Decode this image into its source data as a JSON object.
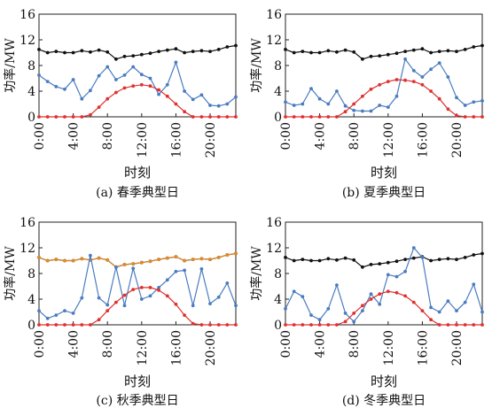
{
  "chart_data": [
    {
      "type": "line",
      "caption": "(a) 春季典型日",
      "xlabel": "时刻",
      "ylabel": "功率/MW",
      "xlim": [
        0,
        23
      ],
      "ylim": [
        0,
        16
      ],
      "xticks": [
        0,
        4,
        8,
        12,
        16,
        20
      ],
      "xtick_labels": [
        "0:00",
        "4:00",
        "8:00",
        "12:00",
        "16:00",
        "20:00"
      ],
      "yticks": [
        0,
        4,
        8,
        12,
        16
      ],
      "ytick_labels": [
        "0",
        "4",
        "8",
        "12",
        "16"
      ],
      "x": [
        0,
        1,
        2,
        3,
        4,
        5,
        6,
        7,
        8,
        9,
        10,
        11,
        12,
        13,
        14,
        15,
        16,
        17,
        18,
        19,
        20,
        21,
        22,
        23
      ],
      "series": [
        {
          "color": "#111111",
          "marker": "circle",
          "values": [
            10.5,
            10.0,
            10.2,
            10.0,
            10.0,
            10.3,
            10.1,
            10.4,
            10.1,
            9.0,
            9.4,
            9.5,
            9.7,
            9.9,
            10.2,
            10.4,
            10.6,
            10.0,
            10.2,
            10.3,
            10.2,
            10.5,
            10.9,
            11.1
          ]
        },
        {
          "color": "#4a7cc0",
          "marker": "circle",
          "values": [
            6.5,
            5.5,
            4.7,
            4.3,
            5.8,
            2.8,
            4.1,
            6.4,
            7.8,
            5.8,
            6.5,
            7.8,
            6.6,
            6.0,
            3.5,
            5.0,
            8.5,
            4.0,
            2.7,
            3.4,
            1.8,
            1.7,
            2.0,
            3.1
          ]
        },
        {
          "color": "#e03030",
          "marker": "circle",
          "values": [
            0,
            0,
            0,
            0,
            0,
            0,
            0.3,
            1.5,
            2.8,
            3.8,
            4.5,
            4.8,
            5.0,
            4.8,
            4.2,
            3.2,
            2.0,
            0.8,
            0,
            0,
            0,
            0,
            0,
            0
          ]
        }
      ]
    },
    {
      "type": "line",
      "caption": "(b) 夏季典型日",
      "xlabel": "时刻",
      "ylabel": "功率/MW",
      "xlim": [
        0,
        23
      ],
      "ylim": [
        0,
        16
      ],
      "xticks": [
        0,
        4,
        8,
        12,
        16,
        20
      ],
      "xtick_labels": [
        "0:00",
        "4:00",
        "8:00",
        "12:00",
        "16:00",
        "20:00"
      ],
      "yticks": [
        0,
        4,
        8,
        12,
        16
      ],
      "ytick_labels": [
        "0",
        "4",
        "8",
        "12",
        "16"
      ],
      "x": [
        0,
        1,
        2,
        3,
        4,
        5,
        6,
        7,
        8,
        9,
        10,
        11,
        12,
        13,
        14,
        15,
        16,
        17,
        18,
        19,
        20,
        21,
        22,
        23
      ],
      "series": [
        {
          "color": "#111111",
          "marker": "circle",
          "values": [
            10.5,
            10.0,
            10.2,
            10.0,
            10.0,
            10.3,
            10.1,
            10.4,
            10.1,
            9.0,
            9.4,
            9.5,
            9.7,
            9.9,
            10.2,
            10.4,
            10.6,
            10.0,
            10.2,
            10.3,
            10.2,
            10.5,
            10.9,
            11.1
          ]
        },
        {
          "color": "#4a7cc0",
          "marker": "circle",
          "values": [
            2.3,
            1.8,
            2.0,
            4.4,
            2.8,
            2.0,
            4.0,
            1.7,
            1.0,
            0.9,
            0.9,
            1.8,
            1.5,
            3.2,
            9.0,
            7.2,
            6.2,
            7.4,
            8.4,
            6.2,
            3.0,
            1.8,
            2.3,
            2.5
          ]
        },
        {
          "color": "#e03030",
          "marker": "circle",
          "values": [
            0,
            0,
            0,
            0,
            0,
            0,
            0,
            0.8,
            2.0,
            3.2,
            4.3,
            5.0,
            5.5,
            5.8,
            5.7,
            5.5,
            5.0,
            4.0,
            2.8,
            1.2,
            0.2,
            0,
            0,
            0
          ]
        }
      ]
    },
    {
      "type": "line",
      "caption": "(c) 秋季典型日",
      "xlabel": "时刻",
      "ylabel": "功率/MW",
      "xlim": [
        0,
        23
      ],
      "ylim": [
        0,
        16
      ],
      "xticks": [
        0,
        4,
        8,
        12,
        16,
        20
      ],
      "xtick_labels": [
        "0:00",
        "4:00",
        "8:00",
        "12:00",
        "16:00",
        "20:00"
      ],
      "yticks": [
        0,
        4,
        8,
        12,
        16
      ],
      "ytick_labels": [
        "0",
        "4",
        "8",
        "12",
        "16"
      ],
      "x": [
        0,
        1,
        2,
        3,
        4,
        5,
        6,
        7,
        8,
        9,
        10,
        11,
        12,
        13,
        14,
        15,
        16,
        17,
        18,
        19,
        20,
        21,
        22,
        23
      ],
      "series": [
        {
          "color": "#111111",
          "marker": "circle",
          "values": [
            10.5,
            10.0,
            10.2,
            10.0,
            10.0,
            10.3,
            10.1,
            10.4,
            10.1,
            9.0,
            9.4,
            9.5,
            9.7,
            9.9,
            10.2,
            10.4,
            10.6,
            10.0,
            10.2,
            10.3,
            10.2,
            10.5,
            10.9,
            11.1
          ]
        },
        {
          "color": "#e08a2a",
          "marker": "circle",
          "values": [
            10.5,
            10.0,
            10.2,
            10.0,
            10.0,
            10.3,
            10.1,
            10.4,
            10.1,
            9.0,
            9.4,
            9.5,
            9.7,
            9.9,
            10.2,
            10.4,
            10.6,
            10.0,
            10.2,
            10.3,
            10.2,
            10.5,
            10.9,
            11.1
          ]
        },
        {
          "color": "#4a7cc0",
          "marker": "circle",
          "values": [
            2.2,
            1.0,
            1.5,
            2.2,
            1.8,
            4.2,
            10.8,
            4.2,
            3.1,
            9.0,
            3.0,
            8.8,
            4.0,
            4.5,
            5.8,
            7.0,
            8.3,
            8.5,
            3.0,
            8.7,
            3.3,
            4.3,
            6.5,
            3.0
          ]
        },
        {
          "color": "#e03030",
          "marker": "circle",
          "values": [
            0,
            0,
            0,
            0,
            0,
            0,
            0,
            0.8,
            2.2,
            3.5,
            4.6,
            5.5,
            5.8,
            5.8,
            5.4,
            4.5,
            3.2,
            1.5,
            0.2,
            0,
            0,
            0,
            0,
            0
          ]
        }
      ]
    },
    {
      "type": "line",
      "caption": "(d) 冬季典型日",
      "xlabel": "时刻",
      "ylabel": "功率/MW",
      "xlim": [
        0,
        23
      ],
      "ylim": [
        0,
        16
      ],
      "xticks": [
        0,
        4,
        8,
        12,
        16,
        20
      ],
      "xtick_labels": [
        "0:00",
        "4:00",
        "8:00",
        "12:00",
        "16:00",
        "20:00"
      ],
      "yticks": [
        0,
        4,
        8,
        12,
        16
      ],
      "ytick_labels": [
        "0",
        "4",
        "8",
        "12",
        "16"
      ],
      "x": [
        0,
        1,
        2,
        3,
        4,
        5,
        6,
        7,
        8,
        9,
        10,
        11,
        12,
        13,
        14,
        15,
        16,
        17,
        18,
        19,
        20,
        21,
        22,
        23
      ],
      "series": [
        {
          "color": "#111111",
          "marker": "circle",
          "values": [
            10.5,
            10.0,
            10.2,
            10.0,
            10.0,
            10.3,
            10.1,
            10.4,
            10.1,
            9.0,
            9.4,
            9.5,
            9.7,
            9.9,
            10.2,
            10.4,
            10.6,
            10.0,
            10.2,
            10.3,
            10.2,
            10.5,
            10.9,
            11.1
          ]
        },
        {
          "color": "#4a7cc0",
          "marker": "circle",
          "values": [
            2.5,
            5.2,
            4.4,
            1.5,
            0.8,
            2.5,
            6.2,
            1.8,
            0.5,
            2.2,
            4.8,
            3.2,
            7.8,
            7.5,
            8.3,
            12.0,
            10.5,
            2.7,
            2.0,
            3.7,
            2.2,
            3.5,
            6.3,
            2.0
          ]
        },
        {
          "color": "#e03030",
          "marker": "circle",
          "values": [
            0,
            0,
            0,
            0,
            0,
            0,
            0,
            0.5,
            1.8,
            3.0,
            4.0,
            4.8,
            5.2,
            5.0,
            4.5,
            3.5,
            2.2,
            0.8,
            0,
            0,
            0,
            0,
            0,
            0
          ]
        }
      ]
    }
  ]
}
